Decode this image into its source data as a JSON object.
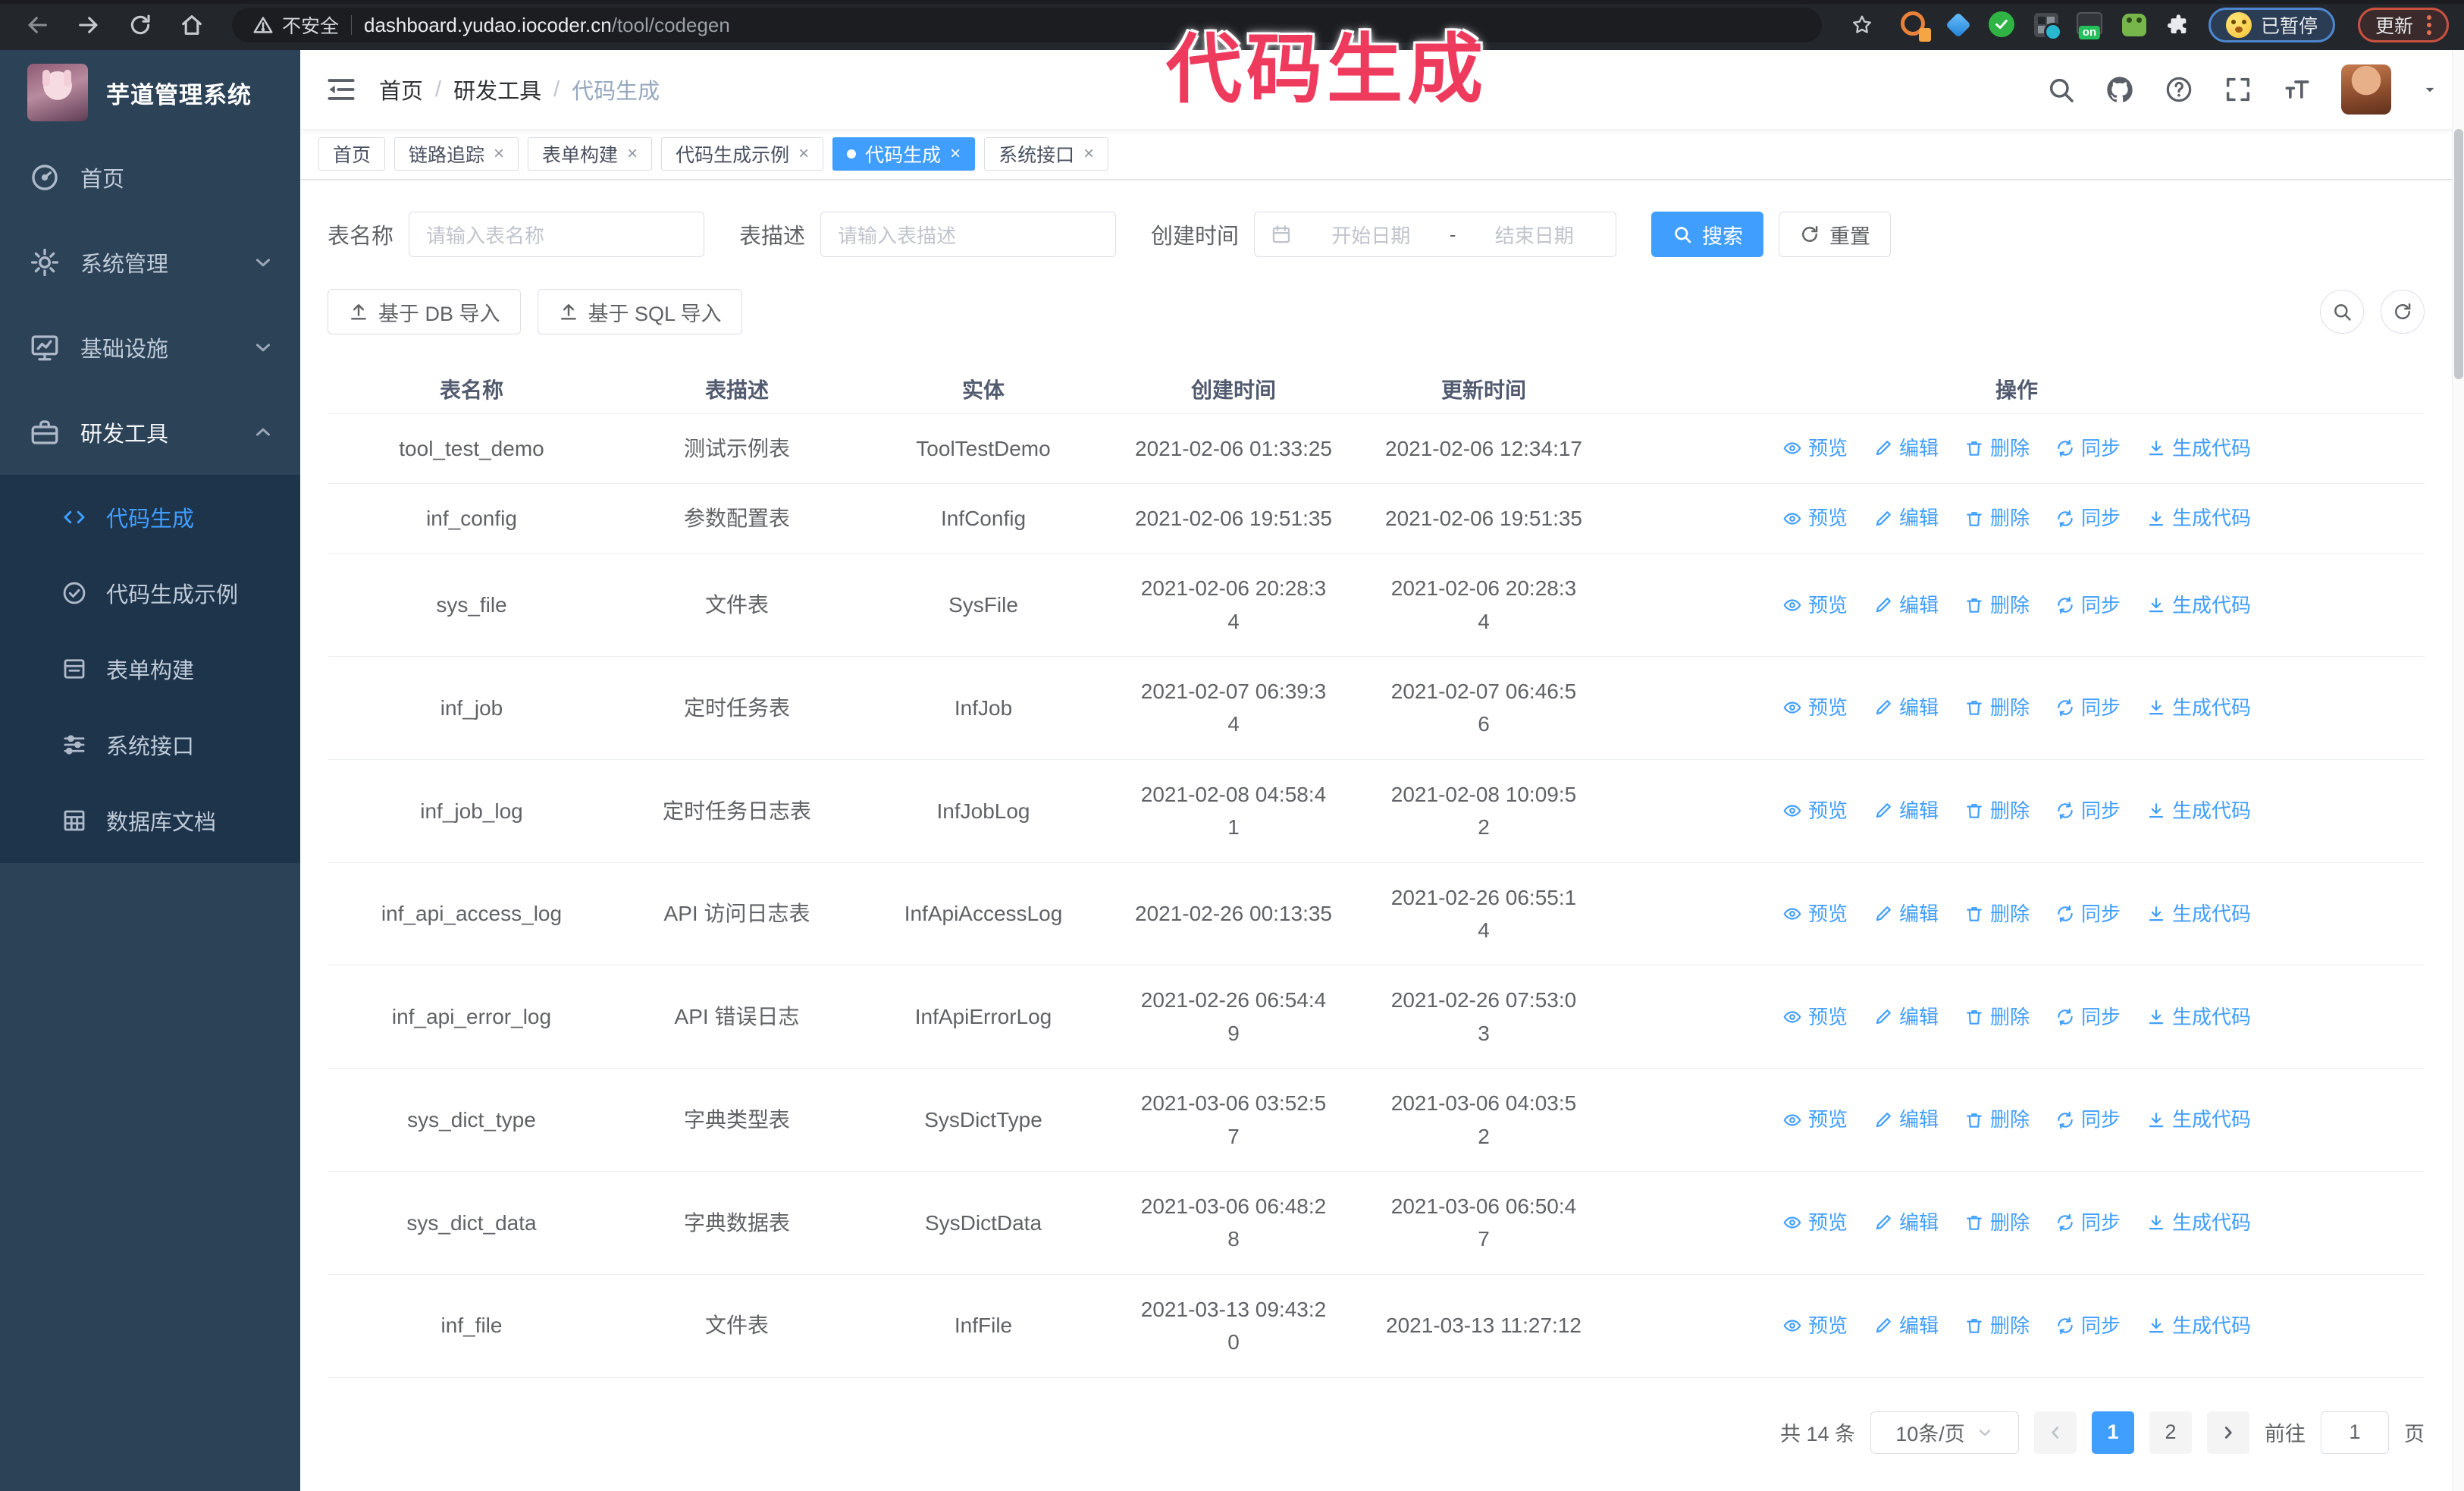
{
  "chrome": {
    "security_label": "不安全",
    "url_domain": "dashboard.yudao.iocoder.cn",
    "url_path": "/tool/codegen",
    "extension_badge": "on",
    "paused_label": "已暂停",
    "update_label": "更新"
  },
  "annotation": {
    "text": "代码生成",
    "color": "#ee3b5d"
  },
  "sidebar": {
    "title": "芋道管理系统",
    "items": [
      {
        "label": "首页"
      },
      {
        "label": "系统管理"
      },
      {
        "label": "基础设施"
      },
      {
        "label": "研发工具"
      }
    ],
    "submenu": [
      {
        "label": "代码生成"
      },
      {
        "label": "代码生成示例"
      },
      {
        "label": "表单构建"
      },
      {
        "label": "系统接口"
      },
      {
        "label": "数据库文档"
      }
    ]
  },
  "navbar": {
    "breadcrumb": [
      "首页",
      "研发工具",
      "代码生成"
    ]
  },
  "tags": [
    {
      "label": "首页"
    },
    {
      "label": "链路追踪"
    },
    {
      "label": "表单构建"
    },
    {
      "label": "代码生成示例"
    },
    {
      "label": "代码生成"
    },
    {
      "label": "系统接口"
    }
  ],
  "filters": {
    "name_label": "表名称",
    "name_placeholder": "请输入表名称",
    "desc_label": "表描述",
    "desc_placeholder": "请输入表描述",
    "time_label": "创建时间",
    "start_placeholder": "开始日期",
    "range_separator": "-",
    "end_placeholder": "结束日期",
    "search_label": "搜索",
    "reset_label": "重置"
  },
  "toolbar": {
    "import_db": "基于 DB 导入",
    "import_sql": "基于 SQL 导入"
  },
  "table": {
    "headers": [
      "表名称",
      "表描述",
      "实体",
      "创建时间",
      "更新时间",
      "操作"
    ],
    "actions": [
      "预览",
      "编辑",
      "删除",
      "同步",
      "生成代码"
    ],
    "rows": [
      {
        "name": "tool_test_demo",
        "desc": "测试示例表",
        "entity": "ToolTestDemo",
        "created": [
          "2021-02-06 01:33:25"
        ],
        "updated": [
          "2021-02-06 12:34:17"
        ]
      },
      {
        "name": "inf_config",
        "desc": "参数配置表",
        "entity": "InfConfig",
        "created": [
          "2021-02-06 19:51:35"
        ],
        "updated": [
          "2021-02-06 19:51:35"
        ]
      },
      {
        "name": "sys_file",
        "desc": "文件表",
        "entity": "SysFile",
        "created": [
          "2021-02-06 20:28:3",
          "4"
        ],
        "updated": [
          "2021-02-06 20:28:3",
          "4"
        ]
      },
      {
        "name": "inf_job",
        "desc": "定时任务表",
        "entity": "InfJob",
        "created": [
          "2021-02-07 06:39:3",
          "4"
        ],
        "updated": [
          "2021-02-07 06:46:5",
          "6"
        ]
      },
      {
        "name": "inf_job_log",
        "desc": "定时任务日志表",
        "entity": "InfJobLog",
        "created": [
          "2021-02-08 04:58:4",
          "1"
        ],
        "updated": [
          "2021-02-08 10:09:5",
          "2"
        ]
      },
      {
        "name": "inf_api_access_log",
        "desc": "API 访问日志表",
        "entity": "InfApiAccessLog",
        "created": [
          "2021-02-26 00:13:35"
        ],
        "updated": [
          "2021-02-26 06:55:1",
          "4"
        ]
      },
      {
        "name": "inf_api_error_log",
        "desc": "API 错误日志",
        "entity": "InfApiErrorLog",
        "created": [
          "2021-02-26 06:54:4",
          "9"
        ],
        "updated": [
          "2021-02-26 07:53:0",
          "3"
        ]
      },
      {
        "name": "sys_dict_type",
        "desc": "字典类型表",
        "entity": "SysDictType",
        "created": [
          "2021-03-06 03:52:5",
          "7"
        ],
        "updated": [
          "2021-03-06 04:03:5",
          "2"
        ]
      },
      {
        "name": "sys_dict_data",
        "desc": "字典数据表",
        "entity": "SysDictData",
        "created": [
          "2021-03-06 06:48:2",
          "8"
        ],
        "updated": [
          "2021-03-06 06:50:4",
          "7"
        ]
      },
      {
        "name": "inf_file",
        "desc": "文件表",
        "entity": "InfFile",
        "created": [
          "2021-03-13 09:43:2",
          "0"
        ],
        "updated": [
          "2021-03-13 11:27:12"
        ]
      }
    ]
  },
  "pagination": {
    "total_label": "共 14 条",
    "page_size": "10条/页",
    "pages": [
      "1",
      "2"
    ],
    "goto_label": "前往",
    "goto_value": "1",
    "page_label": "页"
  },
  "colors": {
    "primary": "#409EFF",
    "sidebar_bg": "#2c4257",
    "submenu_bg": "#1e344b",
    "annotation": "#ee3b5d"
  }
}
